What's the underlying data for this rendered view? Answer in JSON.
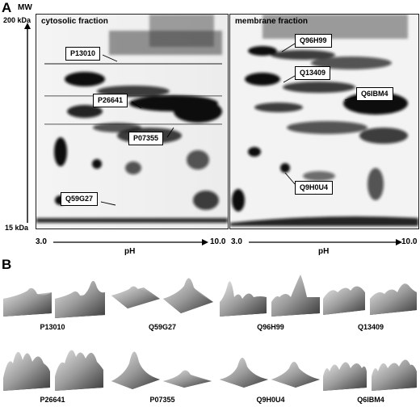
{
  "panel_a": {
    "letter": "A",
    "mw_label": "MW",
    "mw_top": "200 kDa",
    "mw_bottom": "15 kDa",
    "ph_label": "pH",
    "ph_left": "3.0",
    "ph_right": "10.0",
    "ph_left_2": "3.0",
    "ph_right_2": "10.0",
    "ph_label_2": "pH",
    "gels": [
      {
        "title": "cytosolic fraction",
        "labels": [
          "P13010",
          "P26641",
          "P07355",
          "Q59G27"
        ]
      },
      {
        "title": "membrane fraction",
        "labels": [
          "Q96H99",
          "Q13409",
          "Q6IBM4",
          "Q9H0U4"
        ]
      }
    ]
  },
  "panel_b": {
    "letter": "B",
    "plots": [
      "P13010",
      "Q59G27",
      "Q96H99",
      "Q13409",
      "P26641",
      "P07355",
      "Q9H0U4",
      "Q6IBM4"
    ]
  }
}
